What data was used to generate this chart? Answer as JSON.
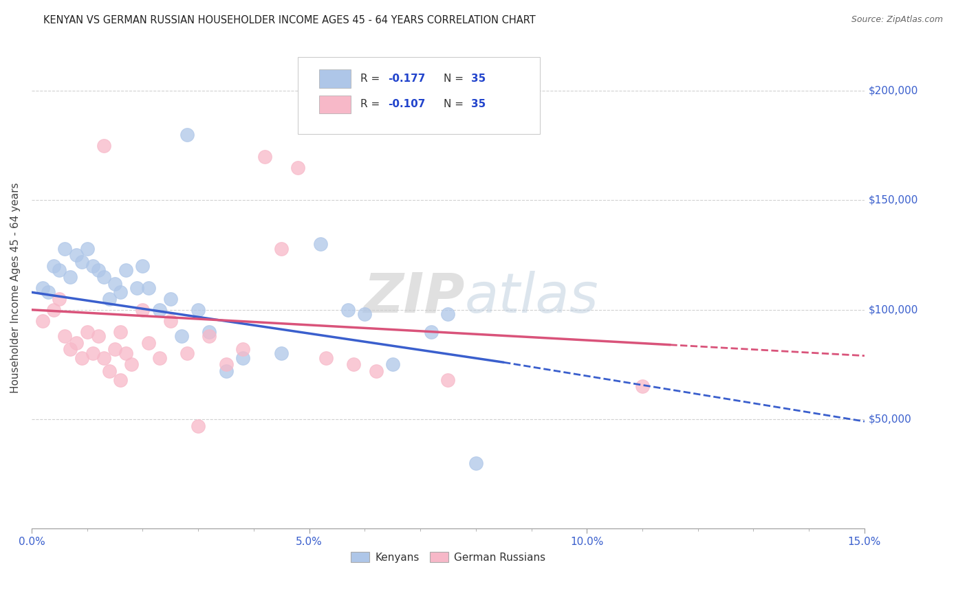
{
  "title": "KENYAN VS GERMAN RUSSIAN HOUSEHOLDER INCOME AGES 45 - 64 YEARS CORRELATION CHART",
  "source": "Source: ZipAtlas.com",
  "ylabel": "Householder Income Ages 45 - 64 years",
  "xlabel_ticks": [
    "0.0%",
    "5.0%",
    "10.0%",
    "15.0%"
  ],
  "xlabel_tick_vals": [
    0.0,
    5.0,
    10.0,
    15.0
  ],
  "ytick_labels": [
    "$50,000",
    "$100,000",
    "$150,000",
    "$200,000"
  ],
  "ytick_vals": [
    50000,
    100000,
    150000,
    200000
  ],
  "xlim": [
    0.0,
    15.0
  ],
  "ylim": [
    0,
    220000
  ],
  "watermark_zip": "ZIP",
  "watermark_atlas": "atlas",
  "legend_r_blue": "-0.177",
  "legend_n_blue": "35",
  "legend_r_pink": "-0.107",
  "legend_n_pink": "35",
  "legend_label_blue": "Kenyans",
  "legend_label_pink": "German Russians",
  "blue_color": "#aec6e8",
  "pink_color": "#f7b8c8",
  "blue_line_color": "#3a5fcd",
  "pink_line_color": "#d9537a",
  "background_color": "#ffffff",
  "grid_color": "#d0d0d0",
  "blue_x": [
    0.2,
    0.3,
    0.4,
    0.5,
    0.6,
    0.7,
    0.8,
    0.9,
    1.0,
    1.1,
    1.2,
    1.3,
    1.4,
    1.5,
    1.6,
    1.7,
    1.9,
    2.0,
    2.1,
    2.3,
    2.5,
    2.7,
    3.0,
    3.2,
    3.8,
    4.5,
    5.2,
    5.7,
    6.0,
    6.5,
    7.2,
    3.5,
    7.5,
    8.0,
    2.8
  ],
  "blue_y": [
    110000,
    108000,
    120000,
    118000,
    128000,
    115000,
    125000,
    122000,
    128000,
    120000,
    118000,
    115000,
    105000,
    112000,
    108000,
    118000,
    110000,
    120000,
    110000,
    100000,
    105000,
    88000,
    100000,
    90000,
    78000,
    80000,
    130000,
    100000,
    98000,
    75000,
    90000,
    72000,
    98000,
    30000,
    180000
  ],
  "pink_x": [
    0.2,
    0.4,
    0.5,
    0.6,
    0.7,
    0.8,
    0.9,
    1.0,
    1.1,
    1.2,
    1.3,
    1.4,
    1.5,
    1.6,
    1.7,
    1.8,
    2.0,
    2.1,
    2.3,
    2.5,
    2.8,
    3.2,
    3.5,
    3.8,
    4.2,
    4.8,
    5.3,
    5.8,
    6.2,
    7.5,
    1.6,
    3.0,
    11.0,
    4.5,
    1.3
  ],
  "pink_y": [
    95000,
    100000,
    105000,
    88000,
    82000,
    85000,
    78000,
    90000,
    80000,
    88000,
    78000,
    72000,
    82000,
    90000,
    80000,
    75000,
    100000,
    85000,
    78000,
    95000,
    80000,
    88000,
    75000,
    82000,
    170000,
    165000,
    78000,
    75000,
    72000,
    68000,
    68000,
    47000,
    65000,
    128000,
    175000
  ],
  "blue_line_x0": 0.0,
  "blue_line_y0": 108000,
  "blue_line_x1": 8.5,
  "blue_line_y1": 76000,
  "blue_dash_x0": 8.5,
  "blue_dash_y0": 76000,
  "blue_dash_x1": 15.0,
  "blue_dash_y1": 49000,
  "pink_line_x0": 0.0,
  "pink_line_y0": 100000,
  "pink_line_x1": 11.5,
  "pink_line_y1": 84000,
  "pink_dash_x0": 11.5,
  "pink_dash_y0": 84000,
  "pink_dash_x1": 15.0,
  "pink_dash_y1": 79000
}
